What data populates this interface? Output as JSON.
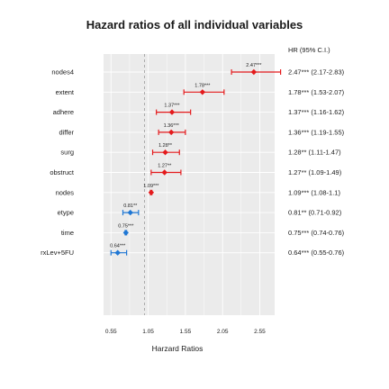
{
  "chart_data": {
    "type": "forest",
    "title": "Hazard ratios of all individual variables",
    "xlabel": "Harzard Ratios",
    "ylabel": "",
    "xlim": [
      0.45,
      2.75
    ],
    "reference_line": 1,
    "xticks": [
      0.55,
      1.05,
      1.55,
      2.05,
      2.55
    ],
    "xtick_labels": [
      "0.55",
      "1.05",
      "1.55",
      "2.05",
      "2.55"
    ],
    "right_header": "HR (95% C.I.)",
    "colors": {
      "risk": "#e41a1c",
      "protective": "#1f77d4",
      "neutral": "#d7191c",
      "panel": "#ebebeb",
      "grid": "#ffffff",
      "refline": "#9a9a9a"
    },
    "rows": [
      {
        "variable": "nodes4",
        "hr": 2.47,
        "lower": 2.17,
        "upper": 2.83,
        "label": "2.47***",
        "ci_text": "2.47*** (2.17-2.83)",
        "group": "risk"
      },
      {
        "variable": "extent",
        "hr": 1.78,
        "lower": 1.53,
        "upper": 2.07,
        "label": "1.78***",
        "ci_text": "1.78*** (1.53-2.07)",
        "group": "risk"
      },
      {
        "variable": "adhere",
        "hr": 1.37,
        "lower": 1.16,
        "upper": 1.62,
        "label": "1.37***",
        "ci_text": "1.37*** (1.16-1.62)",
        "group": "risk"
      },
      {
        "variable": "differ",
        "hr": 1.36,
        "lower": 1.19,
        "upper": 1.55,
        "label": "1.36***",
        "ci_text": "1.36*** (1.19-1.55)",
        "group": "risk"
      },
      {
        "variable": "surg",
        "hr": 1.28,
        "lower": 1.11,
        "upper": 1.47,
        "label": "1.28**",
        "ci_text": "1.28** (1.11-1.47)",
        "group": "risk"
      },
      {
        "variable": "obstruct",
        "hr": 1.27,
        "lower": 1.09,
        "upper": 1.49,
        "label": "1.27**",
        "ci_text": "1.27** (1.09-1.49)",
        "group": "risk"
      },
      {
        "variable": "nodes",
        "hr": 1.09,
        "lower": 1.08,
        "upper": 1.1,
        "label": "1.09***",
        "ci_text": "1.09*** (1.08-1.1)",
        "group": "risk"
      },
      {
        "variable": "etype",
        "hr": 0.81,
        "lower": 0.71,
        "upper": 0.92,
        "label": "0.81**",
        "ci_text": "0.81** (0.71-0.92)",
        "group": "protective"
      },
      {
        "variable": "time",
        "hr": 0.75,
        "lower": 0.74,
        "upper": 0.76,
        "label": "0.75***",
        "ci_text": "0.75*** (0.74-0.76)",
        "group": "protective"
      },
      {
        "variable": "rxLev+5FU",
        "hr": 0.64,
        "lower": 0.55,
        "upper": 0.76,
        "label": "0.64***",
        "ci_text": "0.64*** (0.55-0.76)",
        "group": "protective"
      }
    ]
  }
}
